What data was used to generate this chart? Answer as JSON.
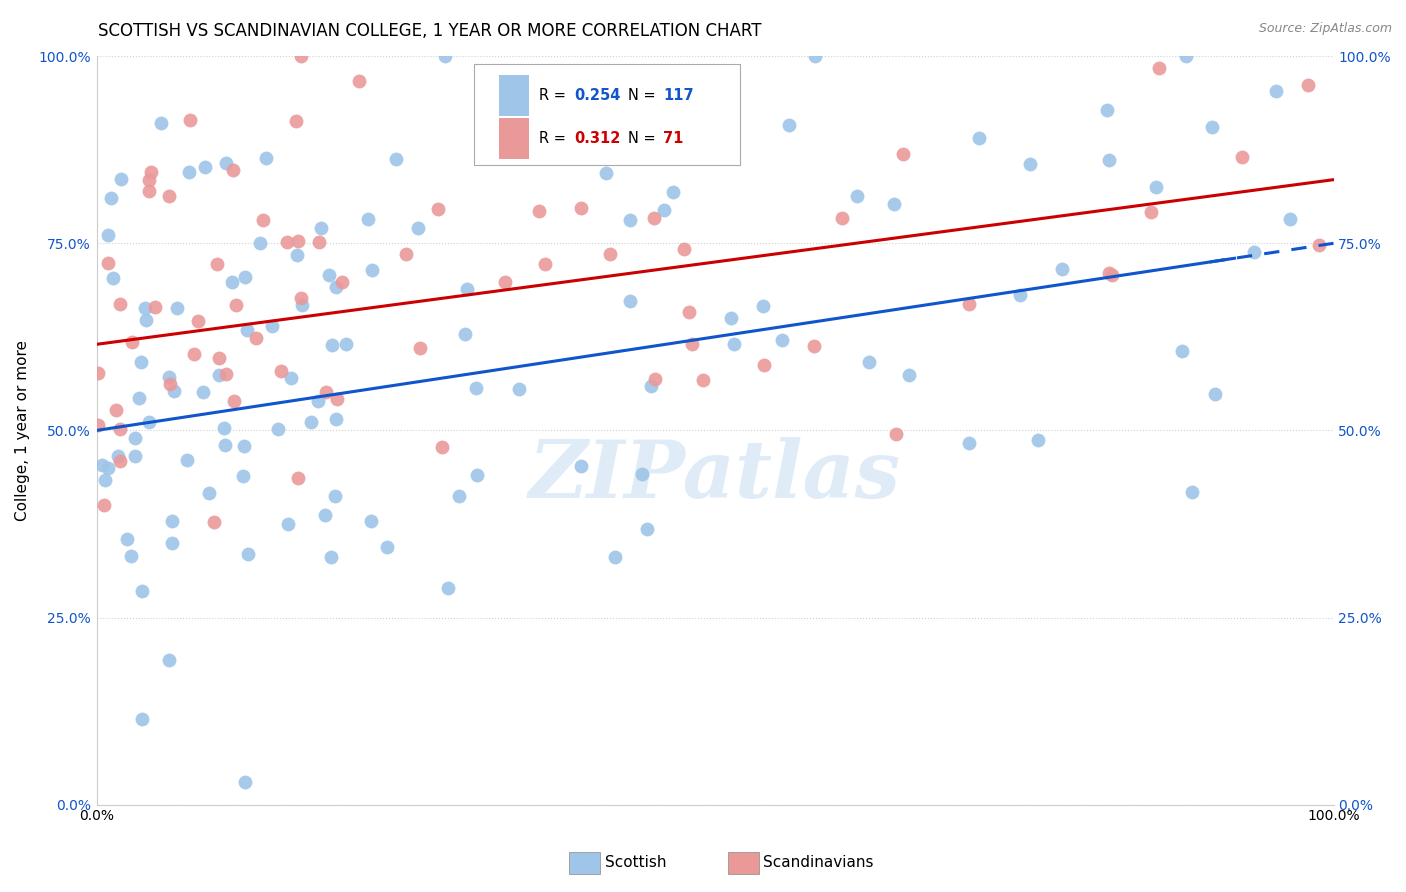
{
  "title": "SCOTTISH VS SCANDINAVIAN COLLEGE, 1 YEAR OR MORE CORRELATION CHART",
  "source": "Source: ZipAtlas.com",
  "ylabel": "College, 1 year or more",
  "ytick_labels": [
    "0.0%",
    "25.0%",
    "50.0%",
    "75.0%",
    "100.0%"
  ],
  "ytick_values": [
    0.0,
    0.25,
    0.5,
    0.75,
    1.0
  ],
  "xlim": [
    0.0,
    1.0
  ],
  "ylim": [
    0.0,
    1.0
  ],
  "legend_label_blue": "Scottish",
  "legend_label_pink": "Scandinavians",
  "R_blue": 0.254,
  "N_blue": 117,
  "R_pink": 0.312,
  "N_pink": 71,
  "blue_color": "#9fc5e8",
  "pink_color": "#ea9999",
  "blue_line_color": "#1155cc",
  "pink_line_color": "#cc0000",
  "watermark": "ZIPatlas",
  "title_fontsize": 12,
  "label_fontsize": 11,
  "tick_fontsize": 10
}
